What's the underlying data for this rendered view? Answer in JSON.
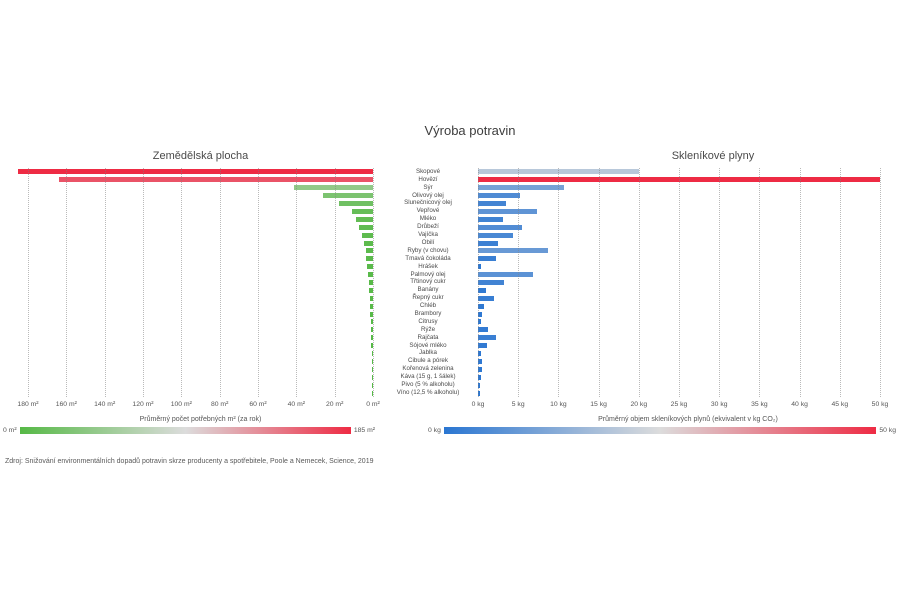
{
  "title": "Výroba potravin",
  "source": "Zdroj: Snižování environmentálních dopadů potravin skrze producenty a spotřebitele, Poole a Nemecek, Science, 2019",
  "categories": [
    "Skopové",
    "Hovězí",
    "Sýr",
    "Olivový olej",
    "Slunečnicový olej",
    "Vepřové",
    "Mléko",
    "Drůbeží",
    "Vajíčka",
    "Obilí",
    "Ryby (v chovu)",
    "Tmavá čokoláda",
    "Hrášek",
    "Palmový olej",
    "Třtinový cukr",
    "Banány",
    "Řepný cukr",
    "Chléb",
    "Brambory",
    "Citrusy",
    "Rýže",
    "Rajčata",
    "Sójové mléko",
    "Jablka",
    "Cibule a pórek",
    "Kořenová zelenina",
    "Káva (15 g, 1 šálek)",
    "Pivo (5 % alkoholu)",
    "Víno (12,5 % alkoholu)"
  ],
  "chart_data": [
    {
      "type": "bar",
      "orientation": "horizontal-right-anchored",
      "title": "Zemědělská plocha",
      "xlabel": "Průměrný počet potřebných m² (za rok)",
      "unit": "m²",
      "xlim": [
        180,
        0
      ],
      "reversed": true,
      "ticks": [
        "180 m²",
        "160 m²",
        "140 m²",
        "120 m²",
        "100 m²",
        "80 m²",
        "60 m²",
        "40 m²",
        "20 m²",
        "0 m²"
      ],
      "values": [
        185,
        164,
        41,
        26,
        18,
        11,
        8.9,
        7.1,
        5.7,
        4.6,
        3.7,
        3.4,
        3.0,
        2.4,
        2.0,
        1.9,
        1.8,
        1.6,
        1.4,
        1.2,
        1.1,
        0.9,
        0.8,
        0.7,
        0.5,
        0.4,
        0.35,
        0.25,
        0.2
      ],
      "color_scale": {
        "min_value": 0,
        "max_value": 185,
        "start": "#56b946",
        "mid": "#dcdcdc",
        "end": "#ee2b44"
      },
      "legend": {
        "min_label": "0 m²",
        "max_label": "185 m²"
      }
    },
    {
      "type": "bar",
      "orientation": "horizontal-left-anchored",
      "title": "Skleníkové plyny",
      "xlabel": "Průměrný objem skleníkových plynů (ekvivalent v kg CO₂)",
      "unit": "kg",
      "xlim": [
        0,
        50
      ],
      "reversed": false,
      "ticks": [
        "0 kg",
        "5 kg",
        "10 kg",
        "15 kg",
        "20 kg",
        "25 kg",
        "30 kg",
        "35 kg",
        "40 kg",
        "45 kg",
        "50 kg"
      ],
      "values": [
        20,
        50,
        10.7,
        5.2,
        3.5,
        7.4,
        3.1,
        5.5,
        4.3,
        2.5,
        8.7,
        2.3,
        0.4,
        6.9,
        3.2,
        1.0,
        2.0,
        0.7,
        0.5,
        0.4,
        1.3,
        2.2,
        1.1,
        0.35,
        0.5,
        0.45,
        0.35,
        0.25,
        0.2
      ],
      "color_scale": {
        "min_value": 0,
        "max_value": 50,
        "start": "#2a76d2",
        "mid": "#dcdcdc",
        "end": "#ee2b44"
      },
      "legend": {
        "min_label": "0 kg",
        "max_label": "50 kg"
      }
    }
  ]
}
